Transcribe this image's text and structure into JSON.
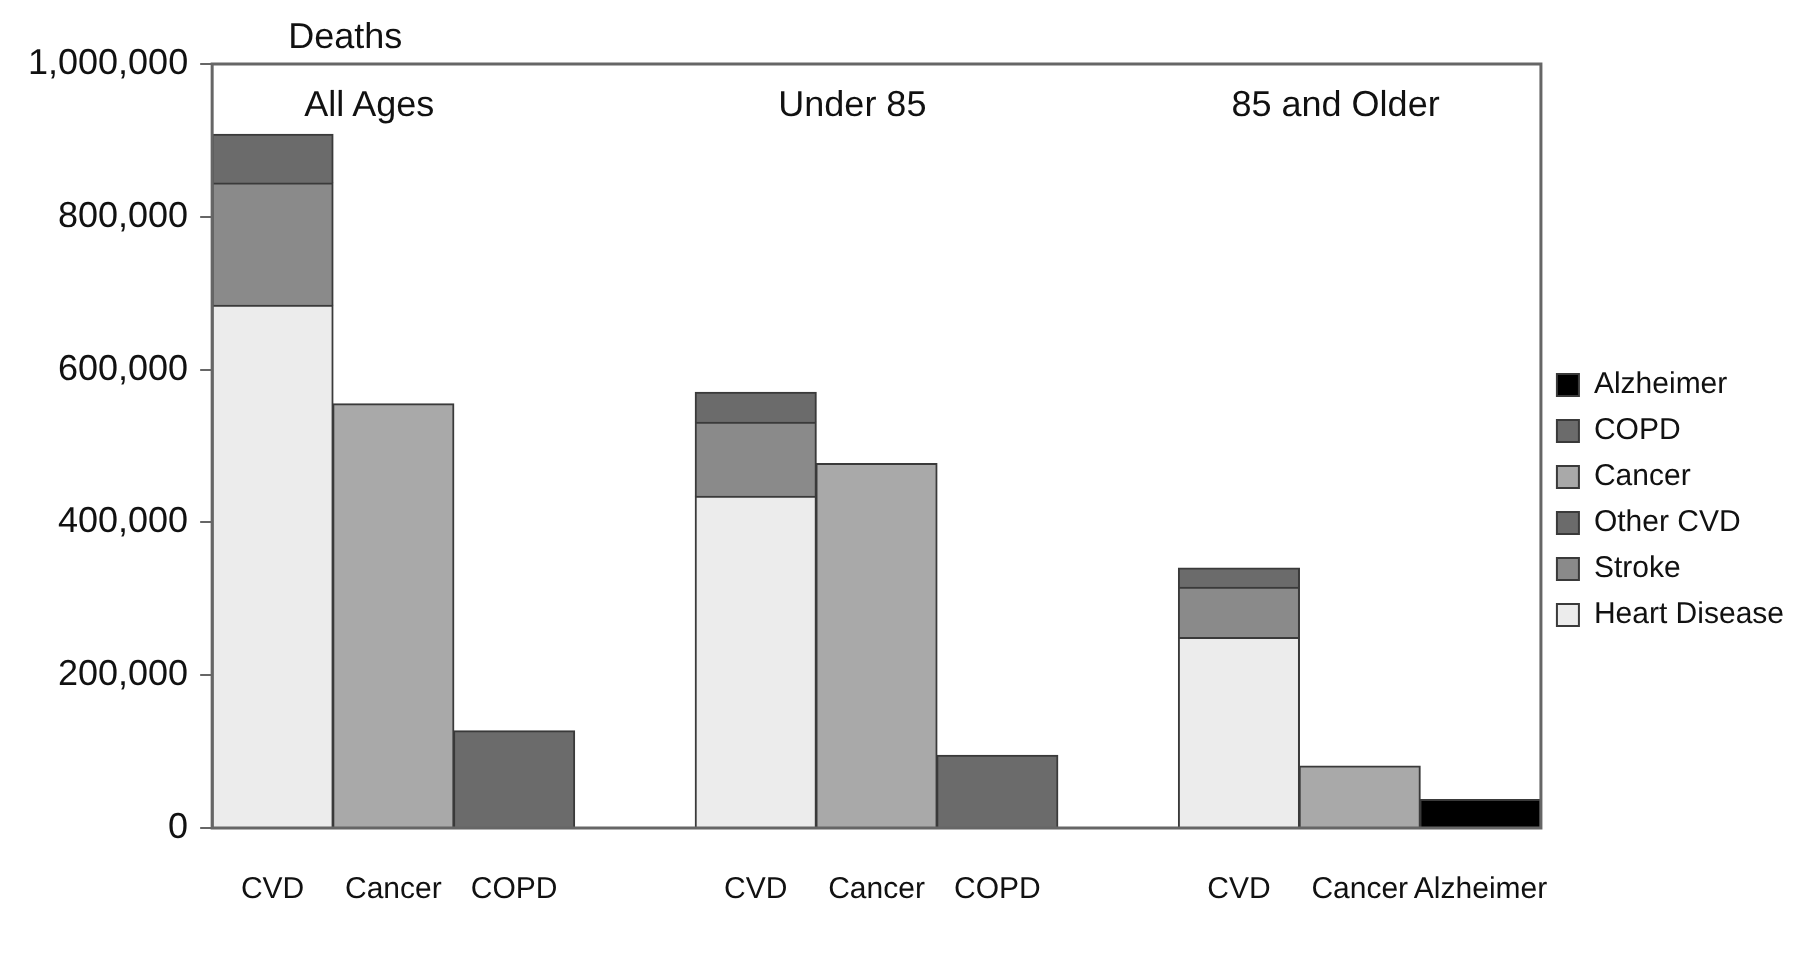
{
  "chart_data": {
    "type": "bar",
    "ylabel": "Deaths",
    "stacked": true,
    "legend": "right",
    "grid": false,
    "categories": [
      "CVD",
      "Cancer",
      "COPD",
      null,
      "CVD",
      "Cancer",
      "COPD",
      null,
      "CVD",
      "Cancer",
      "Alzheimer"
    ],
    "ylim": [
      0,
      1000000
    ],
    "yticks": [
      0,
      {
        "value": 200000,
        "label": "200,000"
      },
      {
        "value": 400000,
        "label": "400,000"
      },
      {
        "value": 600000,
        "label": "600,000"
      },
      {
        "value": 800000,
        "label": "800,000"
      },
      {
        "value": 1000000,
        "label": "1,000,000"
      }
    ],
    "annotations": [
      "All Ages",
      "Under 85",
      "85 and Older"
    ],
    "series": [
      {
        "name": "Heart Disease",
        "color": "#ececec",
        "values": [
          684000,
          null,
          null,
          null,
          434000,
          null,
          null,
          null,
          249000,
          null,
          null
        ]
      },
      {
        "name": "Stroke",
        "color": "#8a8a8a",
        "values": [
          160000,
          null,
          null,
          null,
          97000,
          null,
          null,
          null,
          66000,
          null,
          null
        ]
      },
      {
        "name": "Other CVD",
        "color": "#6b6b6b",
        "values": [
          64000,
          null,
          null,
          null,
          39000,
          null,
          null,
          null,
          25000,
          null,
          null
        ]
      },
      {
        "name": "Cancer",
        "color": "#a9a9a9",
        "values": [
          null,
          555000,
          null,
          null,
          null,
          477000,
          null,
          null,
          null,
          81000,
          null
        ]
      },
      {
        "name": "COPD",
        "color": "#6b6b6b",
        "values": [
          null,
          null,
          127000,
          null,
          null,
          null,
          95000,
          null,
          null,
          null,
          null
        ]
      },
      {
        "name": "Alzheimer",
        "color": "#000000",
        "values": [
          null,
          null,
          null,
          null,
          null,
          null,
          null,
          null,
          null,
          null,
          37000
        ]
      }
    ]
  }
}
